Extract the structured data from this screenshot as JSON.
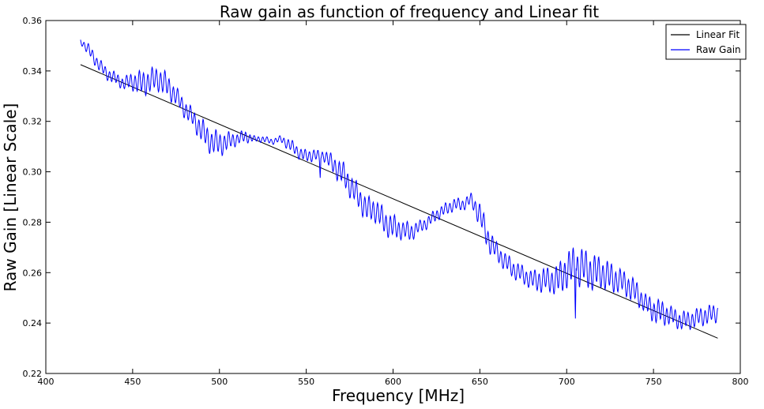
{
  "chart_data": {
    "type": "line",
    "title": "Raw gain as function of frequency and Linear fit",
    "xlabel": "Frequency [MHz]",
    "ylabel": "Raw Gain [Linear Scale]",
    "xlim": [
      400,
      800
    ],
    "ylim": [
      0.22,
      0.36
    ],
    "xticks": [
      400,
      450,
      500,
      550,
      600,
      650,
      700,
      750,
      800
    ],
    "xtick_labels": [
      "400",
      "450",
      "500",
      "550",
      "600",
      "650",
      "700",
      "750",
      "800"
    ],
    "yticks": [
      0.22,
      0.24,
      0.26,
      0.28,
      0.3,
      0.32,
      0.34,
      0.36
    ],
    "ytick_labels": [
      "0.22",
      "0.24",
      "0.26",
      "0.28",
      "0.30",
      "0.32",
      "0.34",
      "0.36"
    ],
    "grid": false,
    "legend": {
      "placement": "top-right",
      "entries": [
        {
          "label": "Linear Fit",
          "color": "#000000"
        },
        {
          "label": "Raw Gain",
          "color": "#0000ff"
        }
      ]
    },
    "series": [
      {
        "name": "Linear Fit",
        "color": "#000000",
        "style": "line",
        "x": [
          420,
          787
        ],
        "y": [
          0.3425,
          0.234
        ]
      },
      {
        "name": "Raw Gain",
        "color": "#0000ff",
        "style": "oscillating-line",
        "x": [
          420,
          425,
          430,
          435,
          440,
          445,
          450,
          455,
          460,
          465,
          470,
          475,
          480,
          485,
          490,
          495,
          500,
          505,
          510,
          515,
          520,
          525,
          530,
          535,
          540,
          545,
          550,
          555,
          558,
          560,
          565,
          570,
          575,
          580,
          585,
          590,
          595,
          600,
          605,
          610,
          615,
          620,
          625,
          630,
          635,
          640,
          645,
          650,
          655,
          660,
          665,
          670,
          675,
          680,
          685,
          690,
          695,
          700,
          705,
          710,
          715,
          720,
          725,
          730,
          735,
          740,
          745,
          750,
          755,
          760,
          765,
          770,
          775,
          780,
          787
        ],
        "y": [
          0.352,
          0.348,
          0.343,
          0.339,
          0.337,
          0.335,
          0.336,
          0.335,
          0.336,
          0.337,
          0.334,
          0.33,
          0.325,
          0.321,
          0.316,
          0.312,
          0.311,
          0.312,
          0.313,
          0.314,
          0.313,
          0.313,
          0.312,
          0.313,
          0.311,
          0.308,
          0.306,
          0.307,
          0.305,
          0.307,
          0.303,
          0.3,
          0.295,
          0.29,
          0.285,
          0.285,
          0.28,
          0.278,
          0.277,
          0.276,
          0.278,
          0.28,
          0.283,
          0.285,
          0.287,
          0.287,
          0.289,
          0.283,
          0.273,
          0.268,
          0.264,
          0.261,
          0.259,
          0.257,
          0.257,
          0.257,
          0.257,
          0.261,
          0.262,
          0.262,
          0.26,
          0.26,
          0.258,
          0.257,
          0.255,
          0.252,
          0.248,
          0.245,
          0.244,
          0.243,
          0.241,
          0.241,
          0.242,
          0.243,
          0.244
        ],
        "oscillation_amplitude": [
          0.001,
          0.002,
          0.002,
          0.002,
          0.002,
          0.002,
          0.003,
          0.004,
          0.004,
          0.004,
          0.004,
          0.003,
          0.003,
          0.003,
          0.004,
          0.004,
          0.004,
          0.003,
          0.002,
          0.002,
          0.001,
          0.001,
          0.001,
          0.001,
          0.002,
          0.002,
          0.002,
          0.002,
          0.002,
          0.002,
          0.003,
          0.004,
          0.004,
          0.004,
          0.004,
          0.004,
          0.004,
          0.004,
          0.003,
          0.003,
          0.002,
          0.002,
          0.002,
          0.002,
          0.002,
          0.002,
          0.002,
          0.004,
          0.004,
          0.003,
          0.003,
          0.003,
          0.003,
          0.003,
          0.004,
          0.004,
          0.005,
          0.006,
          0.007,
          0.006,
          0.006,
          0.005,
          0.005,
          0.004,
          0.004,
          0.004,
          0.003,
          0.004,
          0.004,
          0.003,
          0.003,
          0.003,
          0.003,
          0.003,
          0.003
        ],
        "spikes": [
          {
            "x": 558,
            "y": 0.297
          },
          {
            "x": 705,
            "y": 0.24
          }
        ]
      }
    ]
  }
}
